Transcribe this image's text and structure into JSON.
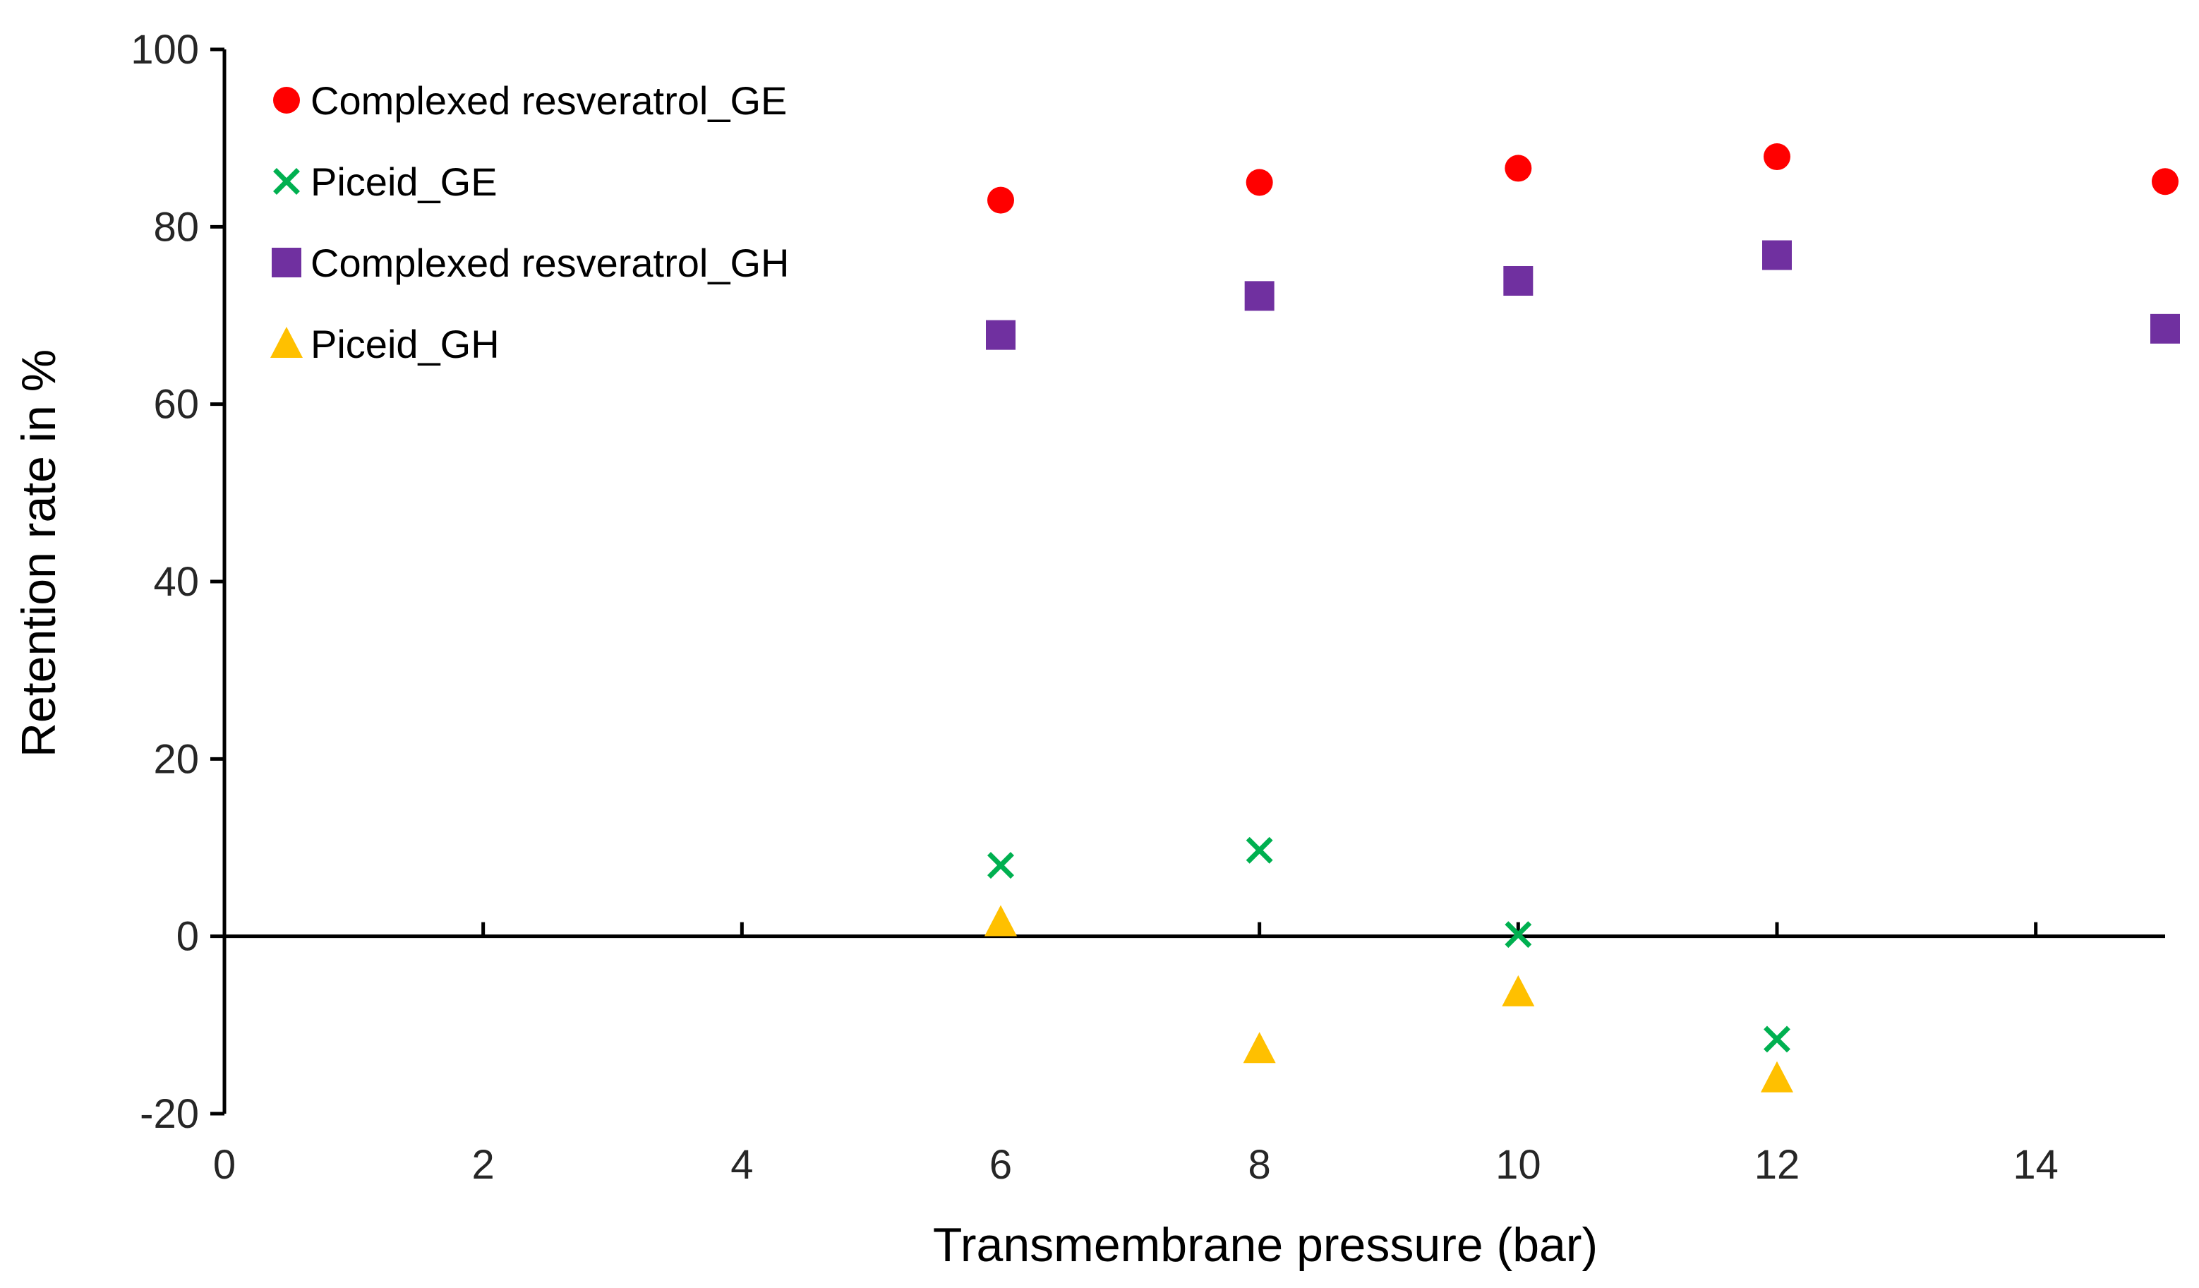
{
  "chart_data": {
    "type": "scatter",
    "title": "",
    "xlabel": "Transmembrane pressure (bar)",
    "ylabel": "Retention rate in %",
    "xlim": [
      0,
      15
    ],
    "ylim": [
      -20,
      100
    ],
    "xticks": [
      0,
      2,
      4,
      6,
      8,
      10,
      12,
      14
    ],
    "yticks": [
      -20,
      0,
      20,
      40,
      60,
      80,
      100
    ],
    "x_axis_crosses_at_y": 0,
    "grid": false,
    "legend_position": "top-left",
    "series": [
      {
        "name": "Complexed resveratrol_GE",
        "marker": "circle",
        "color": "#FF0000",
        "x": [
          6,
          8,
          10,
          12,
          15
        ],
        "y": [
          83.0,
          85.0,
          86.6,
          87.9,
          85.1
        ]
      },
      {
        "name": "Piceid_GE",
        "marker": "x",
        "color": "#00B050",
        "x": [
          6,
          8,
          10,
          12
        ],
        "y": [
          8.0,
          9.7,
          0.2,
          -11.6
        ]
      },
      {
        "name": "Complexed resveratrol_GH",
        "marker": "square",
        "color": "#7030A0",
        "x": [
          6,
          8,
          10,
          12,
          15
        ],
        "y": [
          67.8,
          72.2,
          73.9,
          76.8,
          68.5
        ]
      },
      {
        "name": "Piceid_GH",
        "marker": "triangle",
        "color": "#FFC000",
        "x": [
          6,
          8,
          10,
          12
        ],
        "y": [
          1.6,
          -12.7,
          -6.3,
          -16.0
        ]
      }
    ]
  }
}
